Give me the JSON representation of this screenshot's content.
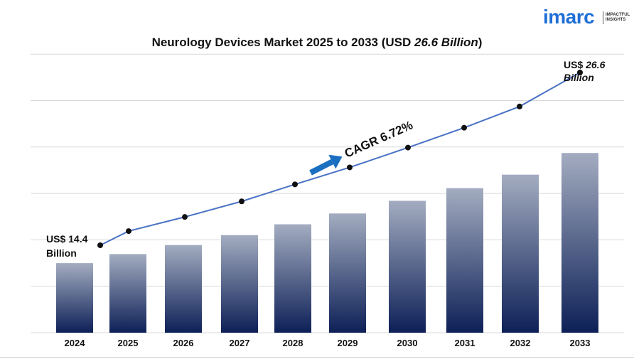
{
  "logo": {
    "brand": "imarc",
    "tagline_line1": "IMPACTFUL",
    "tagline_line2": "INSIGHTS"
  },
  "title": {
    "prefix": "Neurology Devices Market 2025 to 2033 (USD ",
    "value": "26.6 Billion",
    "suffix": ")"
  },
  "annotations": {
    "start_line1": "US$ 14.4",
    "start_line2": "Billion",
    "end_prefix": "US$ ",
    "end_value": "26.6",
    "end_line2": "Billion",
    "cagr": "CAGR 6.72%"
  },
  "colors": {
    "bar_top": "#a3acc0",
    "bar_bottom": "#0d2057",
    "line": "#4a72c4",
    "arrow": "#1a6fc0",
    "grid": "#d9d9d9"
  },
  "chart_data": {
    "type": "bar",
    "categories": [
      "2024",
      "2025",
      "2026",
      "2027",
      "2028",
      "2029",
      "2030",
      "2031",
      "2032",
      "2033"
    ],
    "values": [
      14.4,
      15.4,
      16.4,
      17.5,
      18.7,
      19.9,
      21.3,
      22.7,
      24.2,
      26.6
    ],
    "line_values": [
      14.4,
      15.4,
      16.4,
      17.5,
      18.7,
      19.9,
      21.3,
      22.7,
      24.2,
      26.6
    ],
    "ylim": [
      0,
      28
    ],
    "grid": true,
    "legend": "none"
  }
}
